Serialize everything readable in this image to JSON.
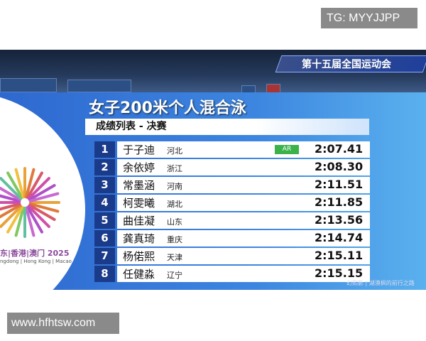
{
  "watermark_top": "TG: MYYJJPP",
  "watermark_bottom": "www.hfhtsw.com",
  "broadcast": {
    "banner": "第十五届全国运动会",
    "event_title": "女子200米个人混合泳",
    "subtitle": "成绩列表 - 决赛",
    "logo_cn": "东|香港|澳门 2025",
    "logo_en": "ngdong | Hong Kong | Macao",
    "corner_watermark": "幻熙影 | 湖漠枫的前行之路",
    "record_color": "#3bb34a",
    "results": [
      {
        "rank": "1",
        "name": "于子迪",
        "province": "河北",
        "record": "AR",
        "time": "2:07.41"
      },
      {
        "rank": "2",
        "name": "余依婷",
        "province": "浙江",
        "record": "",
        "time": "2:08.30"
      },
      {
        "rank": "3",
        "name": "常墨涵",
        "province": "河南",
        "record": "",
        "time": "2:11.51"
      },
      {
        "rank": "4",
        "name": "柯雯曦",
        "province": "湖北",
        "record": "",
        "time": "2:11.85"
      },
      {
        "rank": "5",
        "name": "曲佳凝",
        "province": "山东",
        "record": "",
        "time": "2:13.56"
      },
      {
        "rank": "6",
        "name": "龚真琦",
        "province": "重庆",
        "record": "",
        "time": "2:14.74"
      },
      {
        "rank": "7",
        "name": "杨偌熙",
        "province": "天津",
        "record": "",
        "time": "2:15.11"
      },
      {
        "rank": "8",
        "name": "任健淼",
        "province": "辽宁",
        "record": "",
        "time": "2:15.15"
      }
    ]
  }
}
